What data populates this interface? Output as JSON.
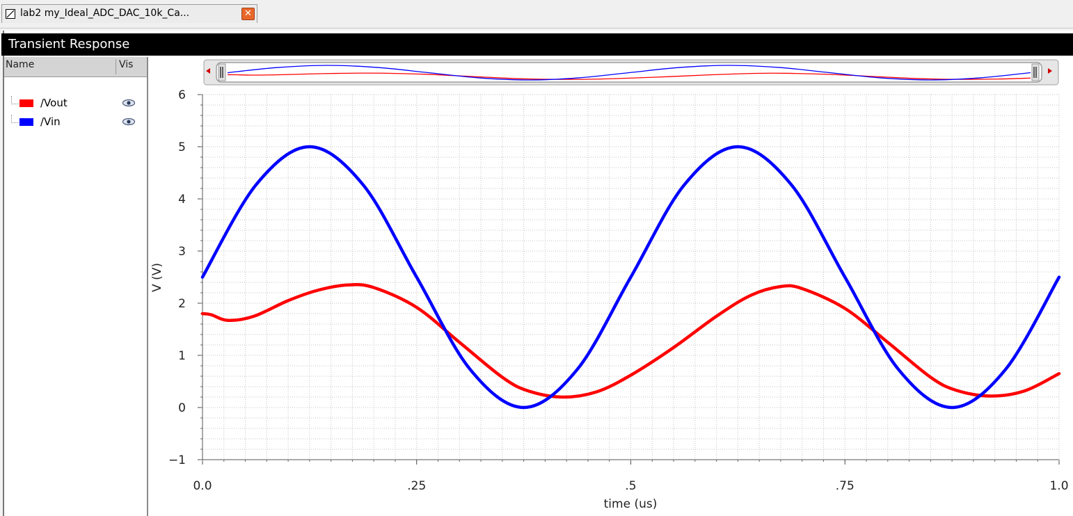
{
  "tab": {
    "title": "lab2 my_Ideal_ADC_DAC_10k_Ca...",
    "close_symbol": "✕"
  },
  "window": {
    "title": "Transient Response"
  },
  "panel": {
    "col_name": "Name",
    "col_vis": "Vis",
    "traces": [
      {
        "label": "/Vout",
        "color": "#ff0000",
        "visible_icon": "eye-icon"
      },
      {
        "label": "/Vin",
        "color": "#0000ff",
        "visible_icon": "eye-icon"
      }
    ]
  },
  "chart_data": {
    "type": "line",
    "xlabel": "time (us)",
    "ylabel": "V (V)",
    "xlim": [
      0,
      1.0
    ],
    "ylim": [
      -1,
      6
    ],
    "xticks": [
      {
        "value": 0,
        "label": "0.0"
      },
      {
        "value": 0.25,
        "label": ".25"
      },
      {
        "value": 0.5,
        "label": ".5"
      },
      {
        "value": 0.75,
        "label": ".75"
      },
      {
        "value": 1.0,
        "label": "1.0"
      }
    ],
    "yticks": [
      {
        "value": 6,
        "label": "6"
      },
      {
        "value": 5,
        "label": "5"
      },
      {
        "value": 4,
        "label": "4"
      },
      {
        "value": 3,
        "label": "3"
      },
      {
        "value": 2,
        "label": "2"
      },
      {
        "value": 1,
        "label": "1"
      },
      {
        "value": 0,
        "label": "0"
      },
      {
        "value": -1,
        "label": "−1"
      }
    ],
    "grid": true,
    "series": [
      {
        "name": "/Vin",
        "color": "#0000ff",
        "x": [
          0,
          0.0625,
          0.125,
          0.1875,
          0.25,
          0.3125,
          0.375,
          0.4375,
          0.5,
          0.5625,
          0.625,
          0.6875,
          0.75,
          0.8125,
          0.875,
          0.9375,
          1.0
        ],
        "y": [
          2.5,
          4.27,
          5.0,
          4.27,
          2.5,
          0.73,
          0.0,
          0.73,
          2.5,
          4.27,
          5.0,
          4.27,
          2.5,
          0.73,
          0.0,
          0.73,
          2.5
        ]
      },
      {
        "name": "/Vout",
        "color": "#ff0000",
        "x": [
          0,
          0.01,
          0.03,
          0.06,
          0.1,
          0.135,
          0.17,
          0.2,
          0.25,
          0.3,
          0.35,
          0.38,
          0.42,
          0.46,
          0.5,
          0.55,
          0.6,
          0.64,
          0.675,
          0.7,
          0.75,
          0.8,
          0.85,
          0.88,
          0.92,
          0.96,
          1.0
        ],
        "y": [
          1.8,
          1.78,
          1.67,
          1.75,
          2.05,
          2.25,
          2.35,
          2.3,
          1.92,
          1.25,
          0.58,
          0.32,
          0.2,
          0.3,
          0.62,
          1.15,
          1.75,
          2.15,
          2.32,
          2.28,
          1.9,
          1.25,
          0.58,
          0.33,
          0.22,
          0.32,
          0.65
        ]
      }
    ]
  }
}
